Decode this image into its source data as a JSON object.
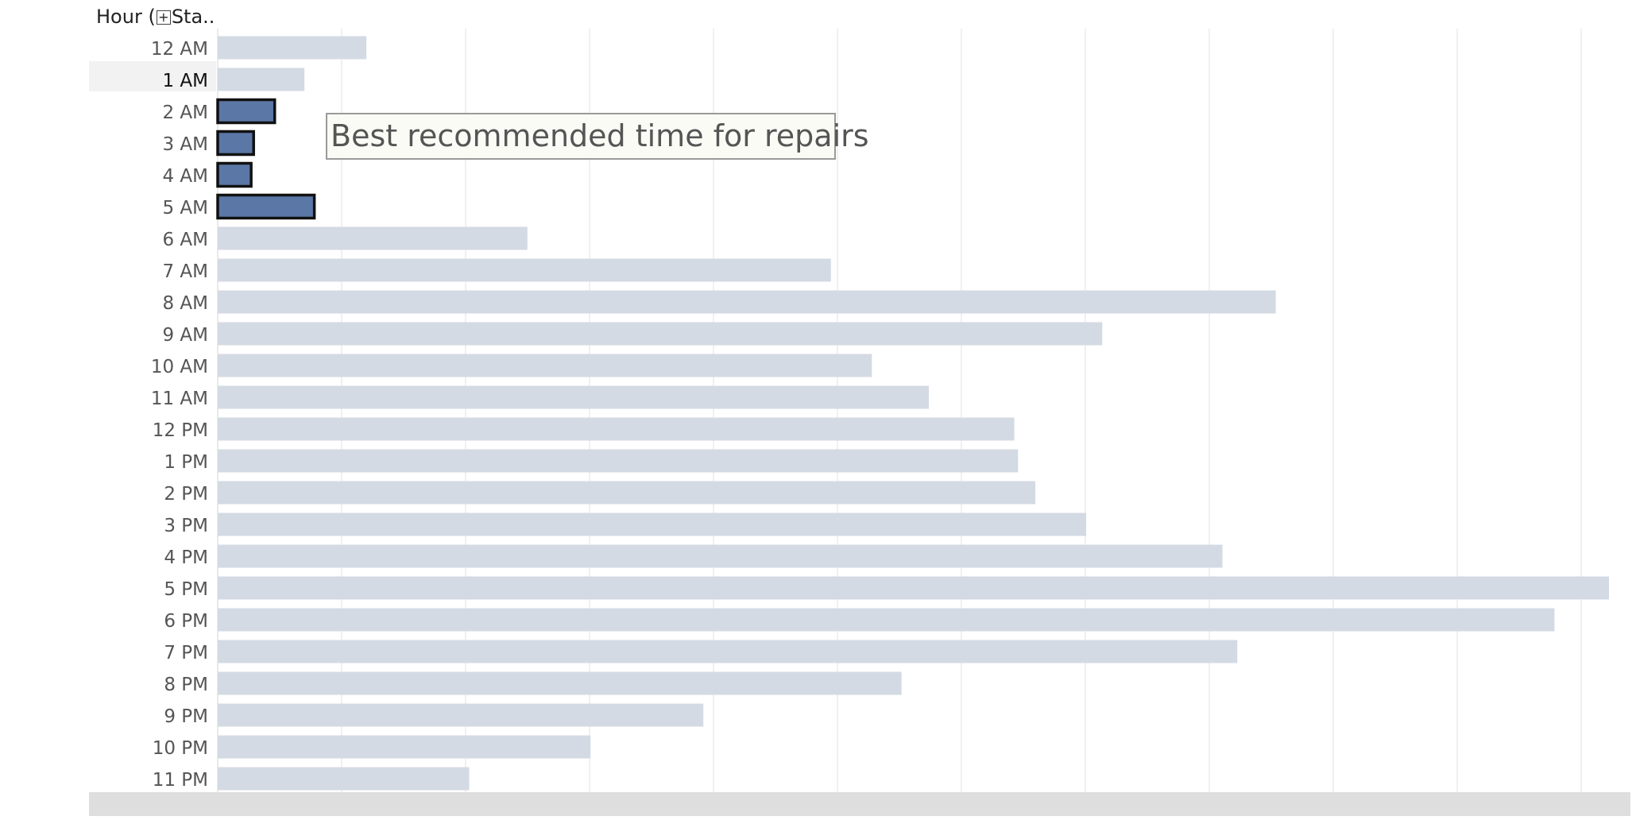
{
  "header": {
    "label_part1": "Hour (",
    "expand_glyph": "+",
    "label_part2": "Sta.."
  },
  "annotation": "Best recommended time for repairs",
  "colors": {
    "bar_default": "#d4dae3",
    "bar_highlight": "#5b77a6",
    "highlight_outline": "#111111",
    "gridline": "#ececec",
    "label": "#555555",
    "label_selected": "#111111"
  },
  "chart_data": {
    "type": "bar",
    "orientation": "horizontal",
    "categories": [
      "12 AM",
      "1 AM",
      "2 AM",
      "3 AM",
      "4 AM",
      "5 AM",
      "6 AM",
      "7 AM",
      "8 AM",
      "9 AM",
      "10 AM",
      "11 AM",
      "12 PM",
      "1 PM",
      "2 PM",
      "3 PM",
      "4 PM",
      "5 PM",
      "6 PM",
      "7 PM",
      "8 PM",
      "9 PM",
      "10 PM",
      "11 PM"
    ],
    "values": [
      12,
      7,
      4.6,
      2.9,
      2.7,
      7.8,
      25,
      49.5,
      85.4,
      71.4,
      52.8,
      57.4,
      64.3,
      64.6,
      66,
      70.1,
      81.1,
      112.3,
      107.9,
      82.3,
      55.2,
      39.2,
      30.1,
      20.3
    ],
    "highlighted": [
      "2 AM",
      "3 AM",
      "4 AM",
      "5 AM"
    ],
    "selected_category": "1 AM",
    "xlim": [
      0,
      112.3
    ],
    "grid": true,
    "title": "",
    "xlabel": "",
    "ylabel": ""
  }
}
